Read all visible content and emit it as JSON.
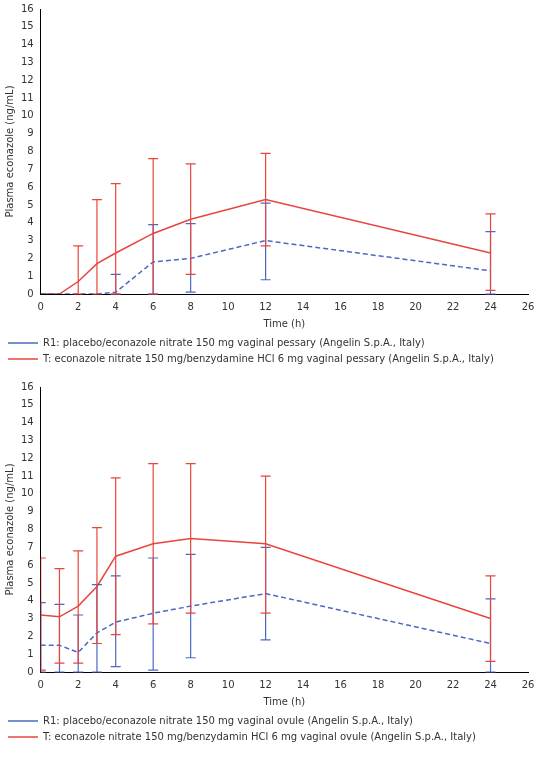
{
  "chart_data": [
    {
      "type": "line",
      "x": [
        0,
        1,
        2,
        3,
        4,
        6,
        8,
        12,
        24
      ],
      "x_label": "Time (h)",
      "y_label": "Plasma econazole (ng/mL)",
      "xlim": [
        0,
        26
      ],
      "xticks": [
        0,
        2,
        4,
        6,
        8,
        10,
        12,
        14,
        16,
        18,
        20,
        22,
        24,
        26
      ],
      "ylim": [
        0,
        16
      ],
      "yticks": [
        0,
        1,
        2,
        3,
        4,
        5,
        6,
        7,
        8,
        9,
        10,
        11,
        12,
        13,
        14,
        15,
        16
      ],
      "grid": false,
      "legend": "bottom",
      "series": [
        {
          "name": "R1: placebo/econazole nitrate 150 mg vaginal pessary (Angelin S.p.A., Italy)",
          "color": "#4a68c4",
          "line_style": "dashed",
          "values": [
            0,
            0,
            0,
            0,
            0.1,
            1.8,
            2.0,
            3.0,
            1.3
          ],
          "error_lower": [
            null,
            null,
            null,
            null,
            0,
            0,
            0.1,
            0.8,
            0
          ],
          "error_upper": [
            null,
            null,
            null,
            null,
            1.1,
            3.9,
            3.95,
            5.1,
            3.5
          ]
        },
        {
          "name": "T: econazole nitrate 150 mg/benzydamine HCl 6 mg vaginal pessary (Angelin S.p.A., Italy)",
          "color": "#e8453c",
          "line_style": "solid",
          "values": [
            0,
            0,
            0.7,
            1.7,
            2.3,
            3.4,
            4.2,
            5.3,
            2.3
          ],
          "error_lower": [
            null,
            null,
            0,
            0,
            0,
            0,
            1.1,
            2.7,
            0.2
          ],
          "error_upper": [
            null,
            null,
            2.7,
            5.3,
            6.2,
            7.6,
            7.3,
            7.9,
            4.5
          ]
        }
      ]
    },
    {
      "type": "line",
      "x": [
        0,
        1,
        2,
        3,
        4,
        6,
        8,
        12,
        24
      ],
      "x_label": "Time (h)",
      "y_label": "Plasma econazole (ng/mL)",
      "xlim": [
        0,
        26
      ],
      "xticks": [
        0,
        2,
        4,
        6,
        8,
        10,
        12,
        14,
        16,
        18,
        20,
        22,
        24,
        26
      ],
      "ylim": [
        0,
        16
      ],
      "yticks": [
        0,
        1,
        2,
        3,
        4,
        5,
        6,
        7,
        8,
        9,
        10,
        11,
        12,
        13,
        14,
        15,
        16
      ],
      "grid": false,
      "legend": "bottom",
      "series": [
        {
          "name": "R1: placebo/econazole nitrate 150 mg vaginal ovule (Angelin S.p.A., Italy)",
          "color": "#4a68c4",
          "line_style": "dashed",
          "values": [
            1.5,
            1.5,
            1.1,
            2.2,
            2.8,
            3.3,
            3.7,
            4.4,
            1.6
          ],
          "error_lower": [
            0,
            0,
            0,
            0,
            0.3,
            0.1,
            0.8,
            1.8,
            0
          ],
          "error_upper": [
            3.9,
            3.8,
            3.2,
            4.9,
            5.4,
            6.4,
            6.6,
            7.0,
            4.1
          ]
        },
        {
          "name": "T: econazole nitrate 150 mg/benzydamin HCl 6 mg vaginal ovule (Angelin S.p.A., Italy)",
          "color": "#e8453c",
          "line_style": "solid",
          "values": [
            3.2,
            3.1,
            3.7,
            4.8,
            6.5,
            7.2,
            7.5,
            7.2,
            3.0
          ],
          "error_lower": [
            0.1,
            0.5,
            0.5,
            1.6,
            2.1,
            2.7,
            3.3,
            3.3,
            0.6
          ],
          "error_upper": [
            6.4,
            5.8,
            6.8,
            8.1,
            10.9,
            11.7,
            11.7,
            11.0,
            5.4
          ]
        }
      ]
    }
  ]
}
